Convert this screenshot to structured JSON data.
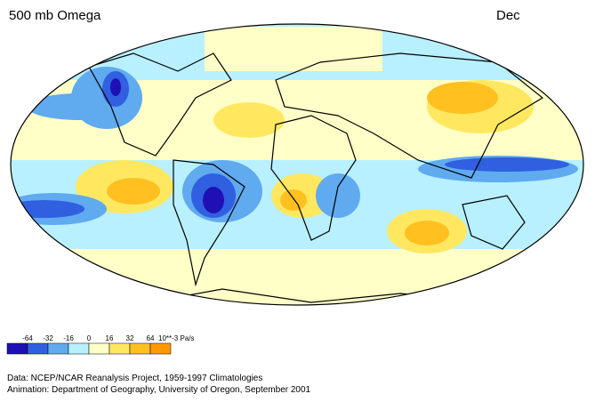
{
  "header": {
    "title": "500 mb Omega",
    "month": "Dec"
  },
  "legend": {
    "ticks": [
      -64,
      -32,
      -16,
      0,
      16,
      32,
      64
    ],
    "unit": "10**-3 Pa/s",
    "colors": [
      "#1e10b4",
      "#3060e0",
      "#60aaf0",
      "#b8f0ff",
      "#ffffc8",
      "#ffe860",
      "#ffc020",
      "#ff9900"
    ]
  },
  "credits": [
    "Data:  NCEP/NCAR Reanalysis Project, 1959-1997 Climatologies",
    "Animation:  Department of Geography, University of Oregon, September 2001"
  ]
}
